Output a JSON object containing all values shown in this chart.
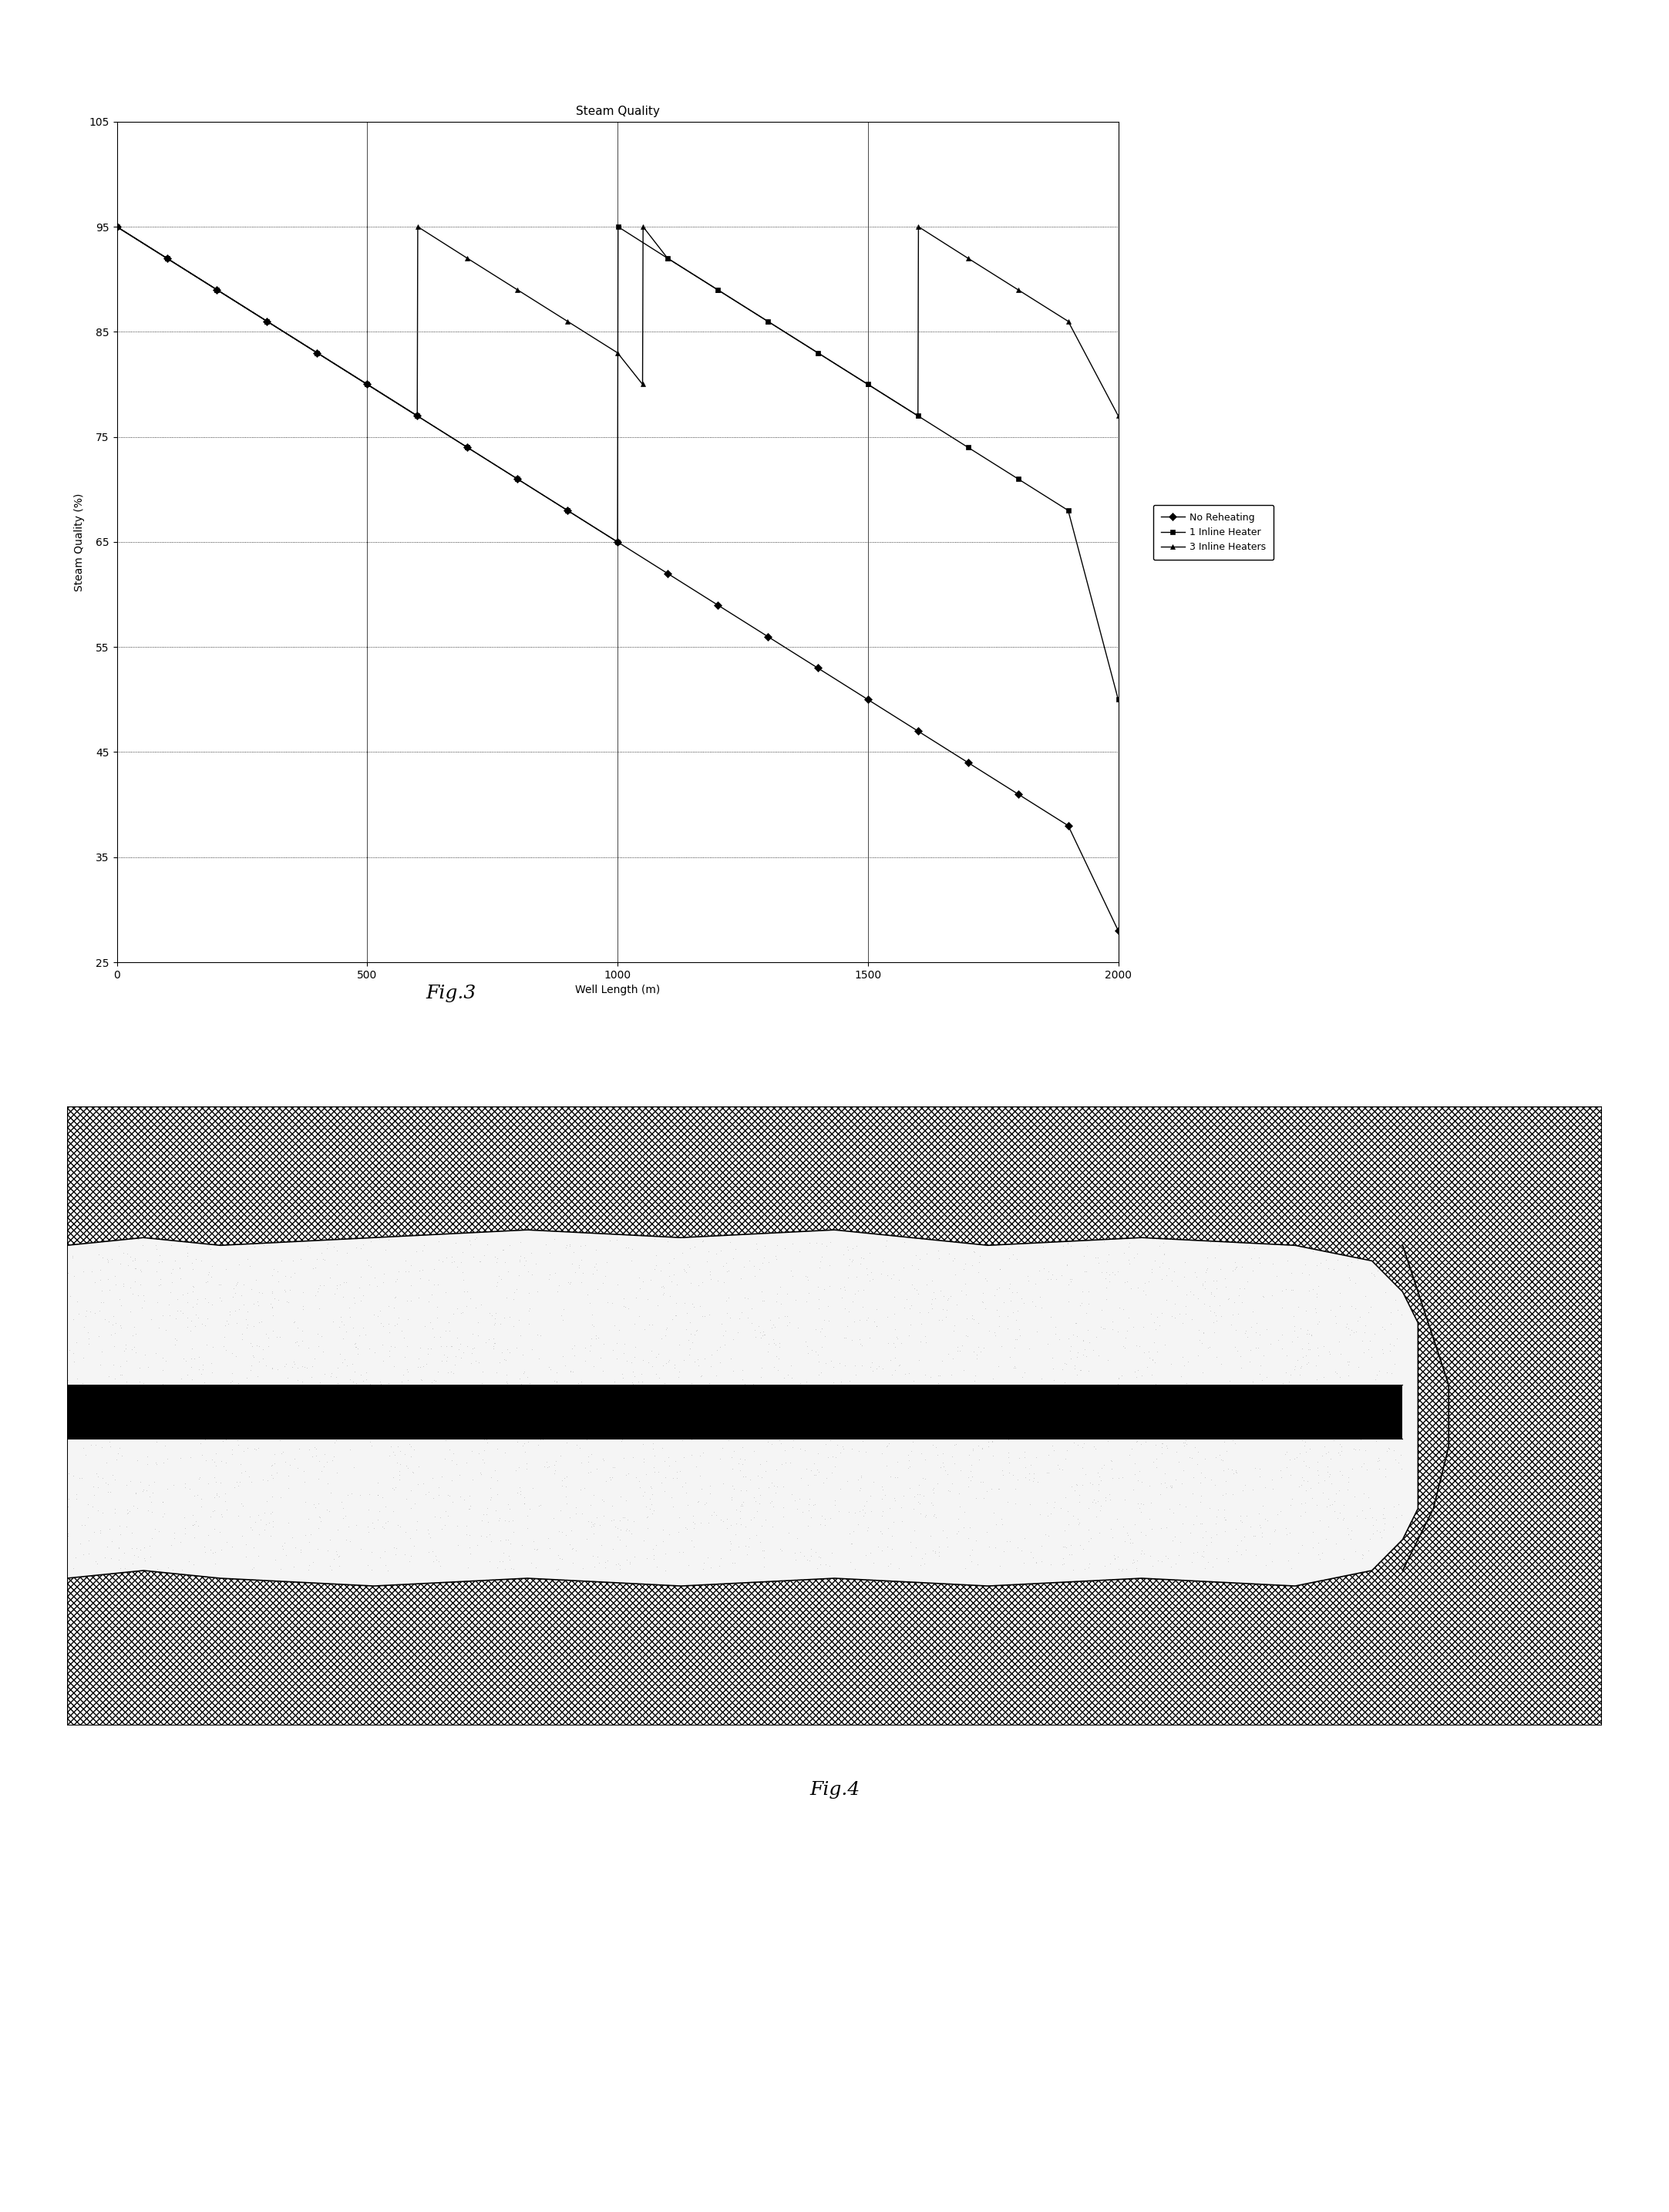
{
  "title": "Steam Quality",
  "xlabel": "Well Length (m)",
  "ylabel": "Steam Quality (%)",
  "xlim": [
    0,
    2000
  ],
  "ylim": [
    25,
    105
  ],
  "yticks": [
    25,
    35,
    45,
    55,
    65,
    75,
    85,
    95,
    105
  ],
  "xticks": [
    0,
    500,
    1000,
    1500,
    2000
  ],
  "fig3_label": "Fig.3",
  "fig4_label": "Fig.4",
  "no_reheat": {
    "x": [
      0,
      100,
      200,
      300,
      400,
      500,
      600,
      700,
      800,
      900,
      1000,
      1100,
      1200,
      1300,
      1400,
      1500,
      1600,
      1700,
      1800,
      1900,
      2000
    ],
    "y": [
      95,
      92,
      89,
      86,
      83,
      80,
      77,
      74,
      71,
      68,
      65,
      62,
      59,
      56,
      53,
      50,
      47,
      44,
      41,
      38,
      28
    ],
    "label": "No Reheating",
    "marker": "D",
    "color": "#000000"
  },
  "one_heater": {
    "x": [
      0,
      100,
      200,
      300,
      400,
      500,
      600,
      700,
      800,
      900,
      1000,
      1001,
      1100,
      1200,
      1300,
      1400,
      1500,
      1600,
      1700,
      1800,
      1900,
      2000
    ],
    "y": [
      95,
      92,
      89,
      86,
      83,
      80,
      77,
      74,
      71,
      68,
      65,
      95,
      92,
      89,
      86,
      83,
      80,
      77,
      74,
      71,
      68,
      50
    ],
    "label": "1 Inline Heater",
    "marker": "s",
    "color": "#000000"
  },
  "three_heaters": {
    "x": [
      0,
      100,
      200,
      300,
      400,
      500,
      600,
      601,
      700,
      800,
      900,
      1000,
      1050,
      1051,
      1100,
      1200,
      1300,
      1400,
      1500,
      1600,
      1601,
      1700,
      1800,
      1900,
      2000
    ],
    "y": [
      95,
      92,
      89,
      86,
      83,
      80,
      77,
      95,
      92,
      89,
      86,
      83,
      80,
      95,
      92,
      89,
      86,
      83,
      80,
      77,
      95,
      92,
      89,
      86,
      77
    ],
    "label": "3 Inline Heaters",
    "marker": "^",
    "color": "#000000"
  },
  "bg_color": "#ffffff",
  "title_fontsize": 11,
  "label_fontsize": 10,
  "tick_fontsize": 10,
  "legend_fontsize": 9
}
